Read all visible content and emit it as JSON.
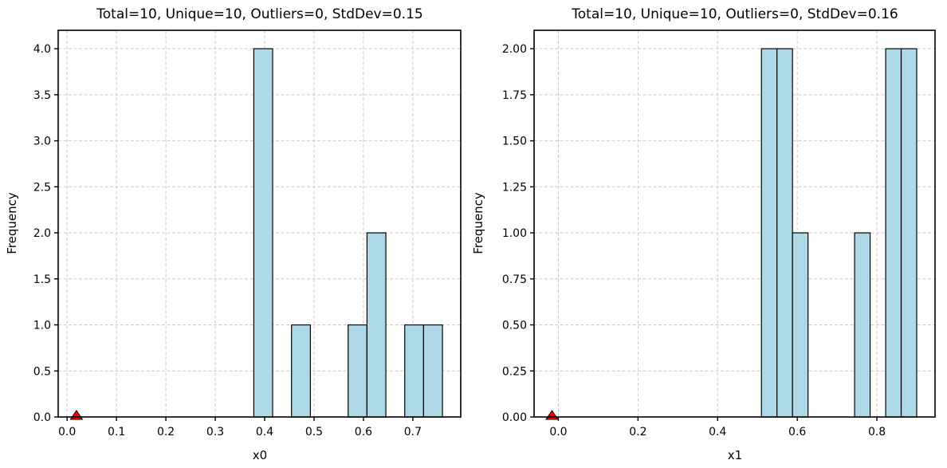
{
  "figure": {
    "background": "#ffffff"
  },
  "style": {
    "bar_fill": "#add8e6",
    "bar_edge": "#000000",
    "marker_fill": "#ff0000",
    "marker_edge": "#000000",
    "grid_color": "#c9c9c9",
    "spine_color": "#000000",
    "tick_color": "#000000"
  },
  "chart_data": [
    {
      "type": "bar",
      "subtype": "histogram",
      "title": "Total=10, Unique=10, Outliers=0, StdDev=0.15",
      "xlabel": "x0",
      "ylabel": "Frequency",
      "bin_start": 0.378,
      "bin_width": 0.0382,
      "counts": [
        4,
        0,
        1,
        0,
        0,
        1,
        2,
        0,
        1,
        1
      ],
      "marker": {
        "x": 0.019,
        "y": 0.0,
        "shape": "triangle-up"
      },
      "xlim": [
        -0.018,
        0.797
      ],
      "ylim": [
        0,
        4.2
      ],
      "xticks": [
        0.0,
        0.1,
        0.2,
        0.3,
        0.4,
        0.5,
        0.6,
        0.7
      ],
      "xtick_labels": [
        "0.0",
        "0.1",
        "0.2",
        "0.3",
        "0.4",
        "0.5",
        "0.6",
        "0.7"
      ],
      "yticks": [
        0,
        0.5,
        1.0,
        1.5,
        2.0,
        2.5,
        3.0,
        3.5,
        4.0
      ],
      "ytick_labels": [
        "0.0",
        "0.5",
        "1.0",
        "1.5",
        "2.0",
        "2.5",
        "3.0",
        "3.5",
        "4.0"
      ],
      "grid": true,
      "grid_style": "dashed"
    },
    {
      "type": "bar",
      "subtype": "histogram",
      "title": "Total=10, Unique=10, Outliers=0, StdDev=0.16",
      "xlabel": "x1",
      "ylabel": "Frequency",
      "bin_start": 0.51,
      "bin_width": 0.039,
      "counts": [
        2,
        2,
        1,
        0,
        0,
        0,
        1,
        0,
        2,
        2
      ],
      "marker": {
        "x": -0.016,
        "y": 0.0,
        "shape": "triangle-up"
      },
      "xlim": [
        -0.061,
        0.946
      ],
      "ylim": [
        0,
        2.1
      ],
      "xticks": [
        0.0,
        0.2,
        0.4,
        0.6,
        0.8
      ],
      "xtick_labels": [
        "0.0",
        "0.2",
        "0.4",
        "0.6",
        "0.8"
      ],
      "yticks": [
        0,
        0.25,
        0.5,
        0.75,
        1.0,
        1.25,
        1.5,
        1.75,
        2.0
      ],
      "ytick_labels": [
        "0.00",
        "0.25",
        "0.50",
        "0.75",
        "1.00",
        "1.25",
        "1.50",
        "1.75",
        "2.00"
      ],
      "grid": true,
      "grid_style": "dashed"
    }
  ]
}
